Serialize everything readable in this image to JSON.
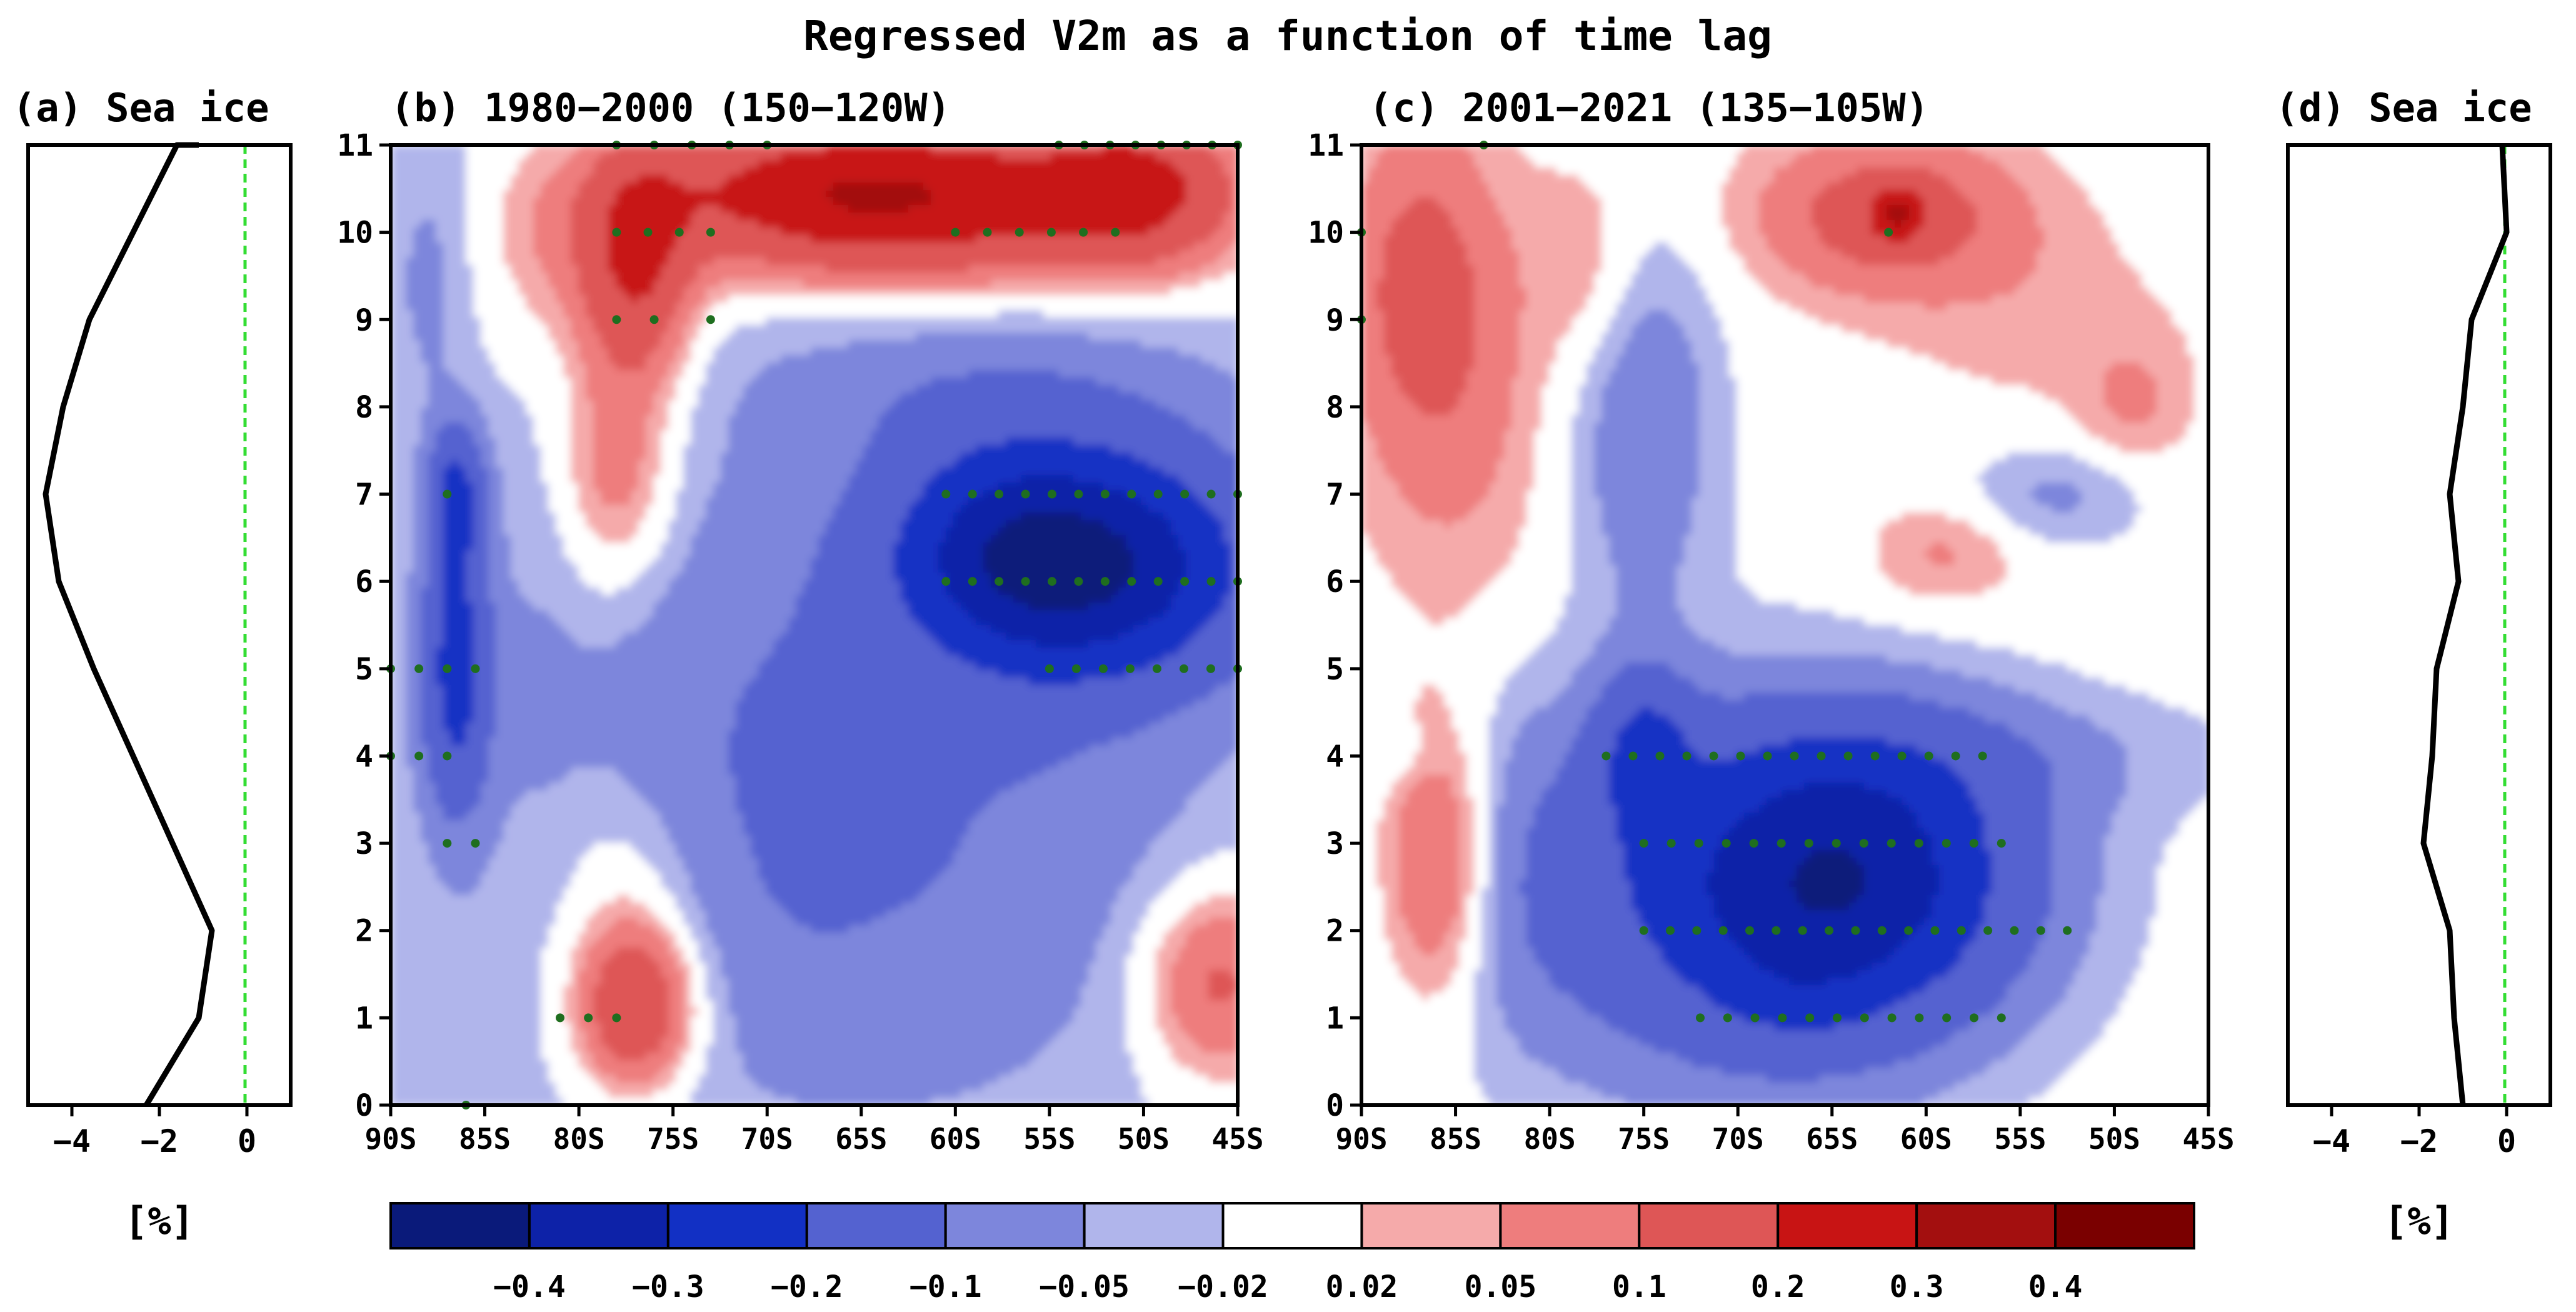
{
  "figure": {
    "title": "Regressed V2m as a function of time lag",
    "colorbar_ticks": [
      "−0.4",
      "−0.3",
      "−0.2",
      "−0.1",
      "−0.05",
      "−0.02",
      "0.02",
      "0.05",
      "0.1",
      "0.2",
      "0.3",
      "0.4"
    ],
    "colors": [
      "#0a1a7a",
      "#0d22a8",
      "#1230c4",
      "#5462d0",
      "#7d86dc",
      "#b0b5eb",
      "#ffffff",
      "#f5aaaa",
      "#ee7d7d",
      "#de5656",
      "#c81414",
      "#a30f0f",
      "#7a0000"
    ],
    "stipple_color": "#1f6e1f",
    "zero_line_color": "#33dd33"
  },
  "chart_data": [
    {
      "id": "a",
      "type": "line",
      "title": "(a) Sea ice",
      "xlabel": "[%]",
      "xlim": [
        -5,
        1
      ],
      "ylim": [
        0,
        11
      ],
      "xticks": [
        "−4",
        "−2",
        "0"
      ],
      "series": [
        {
          "name": "Sea ice",
          "x": [
            -2.3,
            -1.1,
            -0.8,
            -1.7,
            -2.6,
            -3.5,
            -4.3,
            -4.6,
            -4.2,
            -3.6,
            -2.6,
            -1.6,
            -1.1
          ],
          "y": [
            0,
            1,
            2,
            3,
            4,
            5,
            6,
            7,
            8,
            9,
            10,
            11,
            11
          ]
        }
      ]
    },
    {
      "id": "b",
      "type": "heatmap",
      "title": "(b) 1980−2000 (150−120W)",
      "xticks": [
        "90S",
        "85S",
        "80S",
        "75S",
        "70S",
        "65S",
        "60S",
        "55S",
        "50S",
        "45S"
      ],
      "yticks": [
        "0",
        "1",
        "2",
        "3",
        "4",
        "5",
        "6",
        "7",
        "8",
        "9",
        "10",
        "11"
      ],
      "xlim": [
        -90,
        -45
      ],
      "ylim": [
        0,
        11
      ],
      "level_bounds": [
        -0.4,
        -0.3,
        -0.2,
        -0.1,
        -0.05,
        -0.02,
        0.02,
        0.05,
        0.1,
        0.2,
        0.3,
        0.4
      ]
    },
    {
      "id": "c",
      "type": "heatmap",
      "title": "(c) 2001−2021 (135−105W)",
      "xticks": [
        "90S",
        "85S",
        "80S",
        "75S",
        "70S",
        "65S",
        "60S",
        "55S",
        "50S",
        "45S"
      ],
      "yticks": [
        "0",
        "1",
        "2",
        "3",
        "4",
        "5",
        "6",
        "7",
        "8",
        "9",
        "10",
        "11"
      ],
      "xlim": [
        -90,
        -45
      ],
      "ylim": [
        0,
        11
      ],
      "level_bounds": [
        -0.4,
        -0.3,
        -0.2,
        -0.1,
        -0.05,
        -0.02,
        0.02,
        0.05,
        0.1,
        0.2,
        0.3,
        0.4
      ]
    },
    {
      "id": "d",
      "type": "line",
      "title": "(d) Sea ice",
      "xlabel": "[%]",
      "xlim": [
        -5,
        1
      ],
      "ylim": [
        0,
        11
      ],
      "xticks": [
        "−4",
        "−2",
        "0"
      ],
      "series": [
        {
          "name": "Sea ice",
          "x": [
            -1.0,
            -1.2,
            -1.3,
            -1.9,
            -1.7,
            -1.6,
            -1.1,
            -1.3,
            -1.0,
            -0.8,
            0.0,
            -0.1
          ],
          "y": [
            0,
            1,
            2,
            3,
            4,
            5,
            6,
            7,
            8,
            9,
            10,
            11
          ]
        }
      ]
    }
  ]
}
